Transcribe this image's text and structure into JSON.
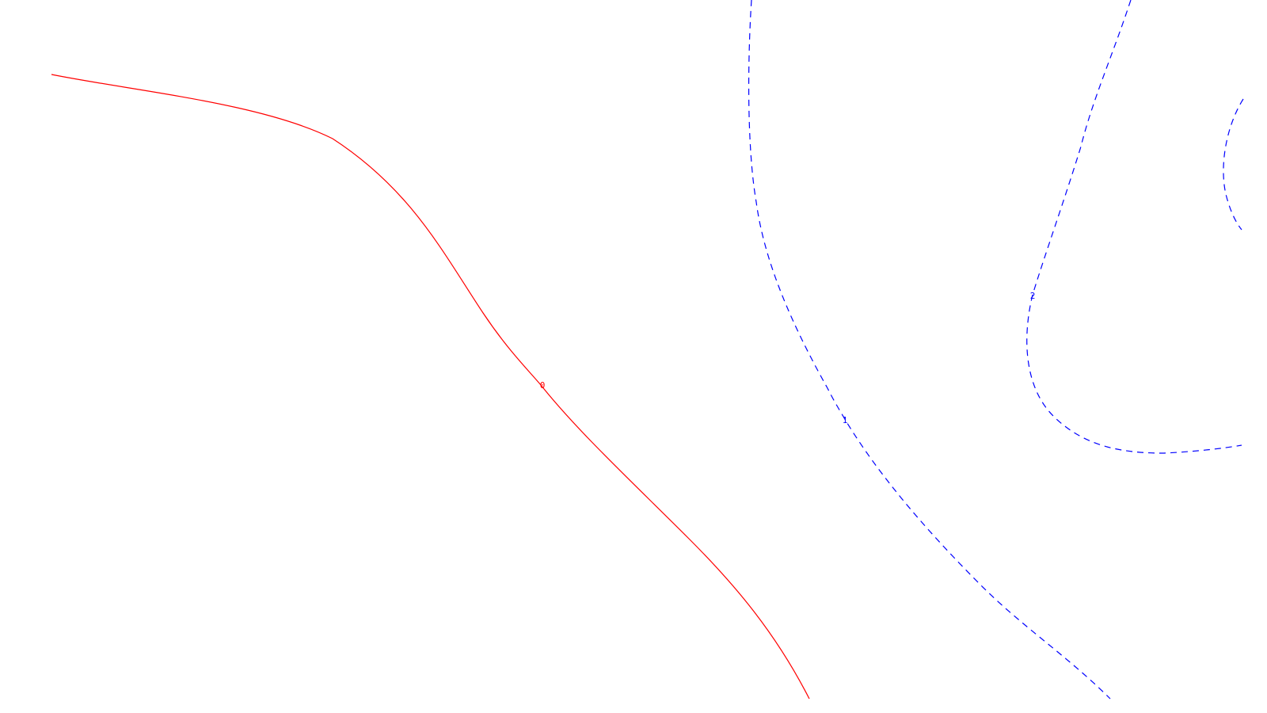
{
  "chart_data": {
    "type": "contour",
    "title": "",
    "xlabel": "",
    "ylabel": "",
    "grid": false,
    "legend": "none",
    "colors": {
      "zero_level": "#ff0000",
      "positive_levels": "#0000ff",
      "background": "#ffffff"
    },
    "levels": [
      {
        "value": 0,
        "label": "0",
        "color": "#ff0000",
        "line_style": "solid"
      },
      {
        "value": 1,
        "label": "1",
        "color": "#0000ff",
        "line_style": "dashed"
      },
      {
        "value": 2,
        "label": "2",
        "color": "#0000ff",
        "line_style": "dashed"
      },
      {
        "value": 2,
        "label": "",
        "color": "#0000ff",
        "line_style": "dashed"
      }
    ]
  }
}
